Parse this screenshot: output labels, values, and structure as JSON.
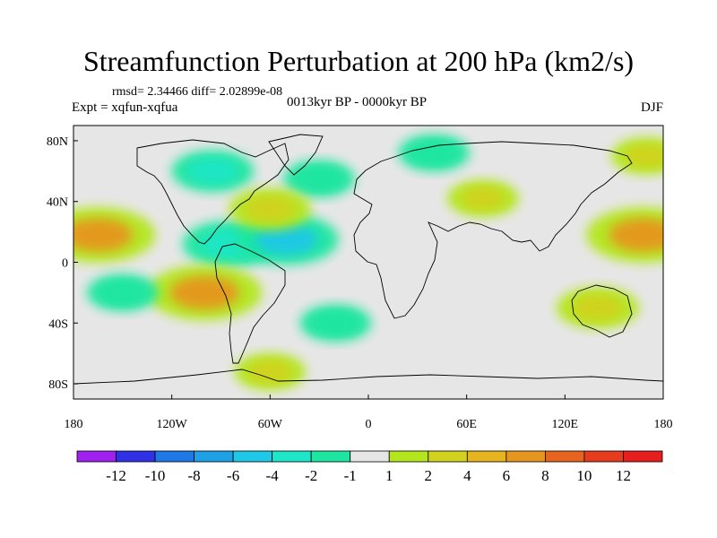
{
  "title": "Streamfunction Perturbation at 200 hPa (km2/s)",
  "stats": "rmsd= 2.34466 diff= 2.02899e-08",
  "experiment": "Expt = xqfun-xqfua",
  "period": "0013kyr BP - 0000kyr BP",
  "season": "DJF",
  "map": {
    "lon_range": [
      -180,
      180
    ],
    "lat_range": [
      -90,
      90
    ],
    "x_ticks": [
      {
        "lon": -180,
        "label": "180"
      },
      {
        "lon": -120,
        "label": "120W"
      },
      {
        "lon": -60,
        "label": "60W"
      },
      {
        "lon": 0,
        "label": "0"
      },
      {
        "lon": 60,
        "label": "60E"
      },
      {
        "lon": 120,
        "label": "120E"
      },
      {
        "lon": 180,
        "label": "180"
      }
    ],
    "y_ticks": [
      {
        "lat": 80,
        "label": "80N"
      },
      {
        "lat": 40,
        "label": "40N"
      },
      {
        "lat": 0,
        "label": "0"
      },
      {
        "lat": -40,
        "label": "40S"
      },
      {
        "lat": -80,
        "label": "80S"
      }
    ],
    "features": [
      {
        "name": "anomaly-arctic-cyclonic",
        "lon": 40,
        "lat": 72,
        "value": -2
      },
      {
        "name": "anomaly-north-america-cyclonic",
        "lon": -95,
        "lat": 60,
        "value": -3
      },
      {
        "name": "anomaly-north-atlantic-cyclonic",
        "lon": -30,
        "lat": 55,
        "value": -2
      },
      {
        "name": "anomaly-eurasia-anticyclonic",
        "lon": 70,
        "lat": 42,
        "value": 2
      },
      {
        "name": "anomaly-north-pacific-anticyclonic",
        "lon": 170,
        "lat": 70,
        "value": 2
      },
      {
        "name": "anomaly-tropical-pacific-east",
        "lon": -165,
        "lat": 18,
        "value": 6
      },
      {
        "name": "anomaly-tropical-pacific-west",
        "lon": 168,
        "lat": 18,
        "value": 6
      },
      {
        "name": "anomaly-central-america-cyclonic",
        "lon": -85,
        "lat": 12,
        "value": -4
      },
      {
        "name": "anomaly-tropical-atlantic-cyclonic",
        "lon": -50,
        "lat": 15,
        "value": -5
      },
      {
        "name": "anomaly-north-atlantic-anticyclonic",
        "lon": -60,
        "lat": 35,
        "value": 3
      },
      {
        "name": "anomaly-south-pacific-anticyclonic",
        "lon": -100,
        "lat": -20,
        "value": 6
      },
      {
        "name": "anomaly-south-pacific-west-cyclonic",
        "lon": -150,
        "lat": -20,
        "value": -2
      },
      {
        "name": "anomaly-south-atlantic-cyclonic",
        "lon": -20,
        "lat": -40,
        "value": -2
      },
      {
        "name": "anomaly-australia-anticyclonic",
        "lon": 140,
        "lat": -30,
        "value": 3
      },
      {
        "name": "anomaly-antarctic-anticyclonic",
        "lon": -60,
        "lat": -72,
        "value": 2
      }
    ]
  },
  "colorbar": {
    "colors": [
      "#a020f0",
      "#3030e6",
      "#1e78e6",
      "#1ea0e6",
      "#1ec8e6",
      "#1ee6c8",
      "#1ee6a0",
      "#e6e6e6",
      "#b4e61e",
      "#d2d21e",
      "#e6b41e",
      "#e6961e",
      "#e6641e",
      "#e63c1e",
      "#e61e1e"
    ],
    "labels": [
      "-12",
      "-10",
      "-8",
      "-6",
      "-4",
      "-2",
      "-1",
      "1",
      "2",
      "4",
      "6",
      "8",
      "10",
      "12"
    ]
  }
}
